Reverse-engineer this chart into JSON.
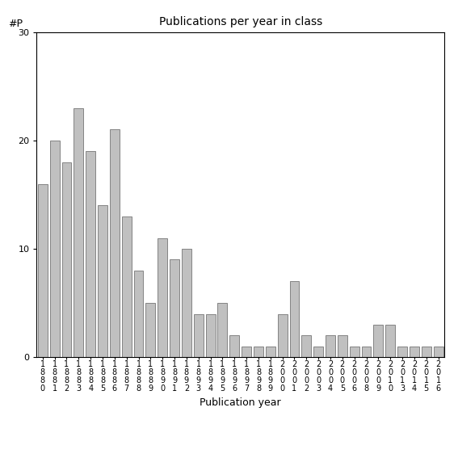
{
  "title": "Publications per year in class",
  "xlabel": "Publication year",
  "ylabel": "#P",
  "bar_color": "#c0c0c0",
  "bar_edgecolor": "#606060",
  "ylim": [
    0,
    30
  ],
  "yticks": [
    0,
    10,
    20,
    30
  ],
  "categories": [
    "1880",
    "1881",
    "1882",
    "1883",
    "1884",
    "1885",
    "1886",
    "1887",
    "1888",
    "1889",
    "1890",
    "1891",
    "1892",
    "1893",
    "1894",
    "1895",
    "1896",
    "1897",
    "1898",
    "1899",
    "2000",
    "2001",
    "2002",
    "2003",
    "2004",
    "2005",
    "2006",
    "2008",
    "2009",
    "2010",
    "2013",
    "2014",
    "2015",
    "2016"
  ],
  "values": [
    16,
    20,
    18,
    23,
    19,
    14,
    21,
    13,
    8,
    5,
    11,
    9,
    10,
    4,
    4,
    5,
    2,
    1,
    1,
    1,
    4,
    7,
    2,
    1,
    2,
    2,
    1,
    1,
    3,
    3,
    1,
    1,
    1,
    1
  ],
  "title_fontsize": 10,
  "axis_label_fontsize": 9,
  "tick_fontsize": 7
}
